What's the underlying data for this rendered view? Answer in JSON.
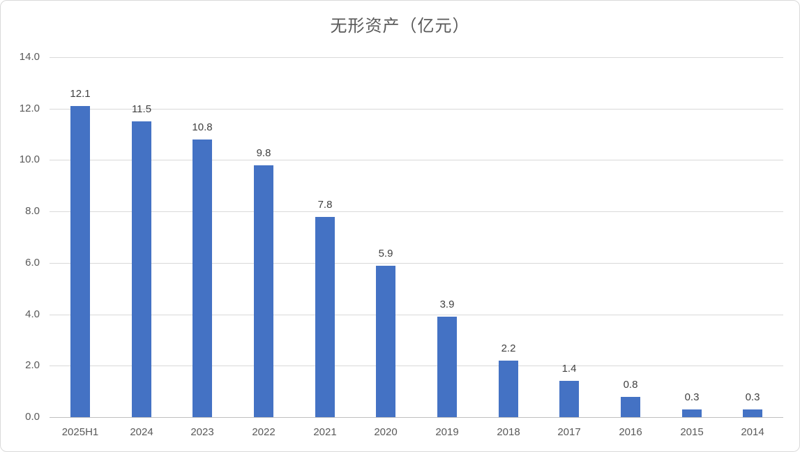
{
  "chart_data": {
    "type": "bar",
    "title": "无形资产（亿元）",
    "categories": [
      "2025H1",
      "2024",
      "2023",
      "2022",
      "2021",
      "2020",
      "2019",
      "2018",
      "2017",
      "2016",
      "2015",
      "2014"
    ],
    "values": [
      12.1,
      11.5,
      10.8,
      9.8,
      7.8,
      5.9,
      3.9,
      2.2,
      1.4,
      0.8,
      0.3,
      0.3
    ],
    "data_labels": [
      "12.1",
      "11.5",
      "10.8",
      "9.8",
      "7.8",
      "5.9",
      "3.9",
      "2.2",
      "1.4",
      "0.8",
      "0.3",
      "0.3"
    ],
    "xlabel": "",
    "ylabel": "",
    "ylim": [
      0,
      14
    ],
    "ytick_step": 2,
    "ytick_labels": [
      "0.0",
      "2.0",
      "4.0",
      "6.0",
      "8.0",
      "10.0",
      "12.0",
      "14.0"
    ],
    "grid": true,
    "legend": false,
    "colors": {
      "bar": "#4472C4",
      "gridline": "#D9D9D9",
      "axis_line": "#BFBFBF",
      "title_text": "#595959",
      "tick_text": "#595959",
      "data_label_text": "#404040",
      "border": "#D9D9D9",
      "background": "#FFFFFF"
    }
  }
}
